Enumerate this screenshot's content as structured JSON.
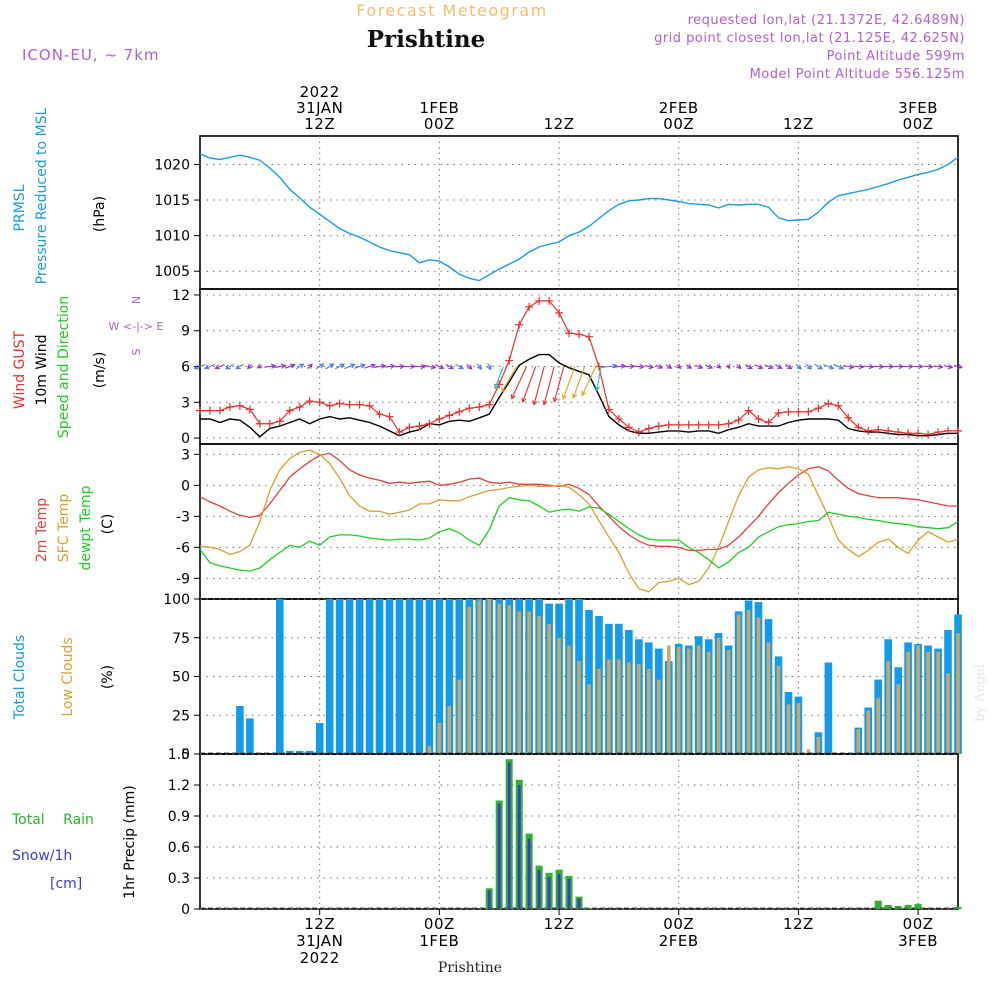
{
  "header": {
    "subtitle": "Forecast Meteogram",
    "title": "Prishtine",
    "model": "ICON-EU, ~ 7km",
    "requested": "requested lon,lat (21.1372E, 42.6489N)",
    "gridpoint": "grid point closest lon,lat (21.125E, 42.625N)",
    "altitude": "Point Altitude 599m",
    "model_altitude": "Model Point Altitude 556.125m",
    "watermark": "by Angel",
    "footer_location": "Prishtine"
  },
  "colors": {
    "pressure": "#1a9be0",
    "gust": "#e8312c",
    "wind": "#000000",
    "temp2m": "#e04040",
    "sfc": "#d9a030",
    "dewpt": "#22cc22",
    "total_clouds": "#139ae8",
    "low_clouds": "#c8a86a",
    "rain": "#2bb52b",
    "snow": "#3b3bd0",
    "purple": "#b060d0",
    "grid": "#777777"
  },
  "chart_data": {
    "type": "meteogram",
    "time_axis": {
      "unit": "hour",
      "range": [
        0,
        76
      ],
      "top_date_lines": [
        {
          "hour": 12,
          "lines": [
            "2022",
            "31JAN",
            "12Z"
          ]
        },
        {
          "hour": 24,
          "lines": [
            "1FEB",
            "00Z"
          ]
        },
        {
          "hour": 36,
          "lines": [
            "12Z"
          ]
        },
        {
          "hour": 48,
          "lines": [
            "2FEB",
            "00Z"
          ]
        },
        {
          "hour": 60,
          "lines": [
            "12Z"
          ]
        },
        {
          "hour": 72,
          "lines": [
            "3FEB",
            "00Z"
          ]
        }
      ],
      "bottom_date_lines": [
        {
          "hour": 12,
          "lines": [
            "12Z",
            "31JAN",
            "2022"
          ]
        },
        {
          "hour": 24,
          "lines": [
            "00Z",
            "1FEB"
          ]
        },
        {
          "hour": 36,
          "lines": [
            "12Z"
          ]
        },
        {
          "hour": 48,
          "lines": [
            "00Z",
            "2FEB"
          ]
        },
        {
          "hour": 60,
          "lines": [
            "12Z"
          ]
        },
        {
          "hour": 72,
          "lines": [
            "00Z",
            "3FEB"
          ]
        }
      ]
    },
    "pressure": {
      "labels": [
        "PRMSL",
        "Pressure Reduced to MSL",
        "(hPa)"
      ],
      "ylim": [
        1002.5,
        1024
      ],
      "yticks": [
        1005,
        1010,
        1015,
        1020
      ],
      "x": [
        0,
        1,
        2,
        3,
        4,
        5,
        6,
        7,
        8,
        9,
        10,
        11,
        12,
        13,
        14,
        15,
        16,
        17,
        18,
        19,
        20,
        21,
        22,
        23,
        24,
        25,
        26,
        27,
        28,
        29,
        30,
        31,
        32,
        33,
        34,
        35,
        36,
        37,
        38,
        39,
        40,
        41,
        42,
        43,
        44,
        45,
        46,
        47,
        48,
        49,
        50,
        51,
        52,
        53,
        54,
        55,
        56,
        57,
        58,
        59,
        60,
        61,
        62,
        63,
        64,
        65,
        66,
        67,
        68,
        69,
        70,
        71,
        72,
        73,
        74,
        75,
        76
      ],
      "values": [
        1021.5,
        1020.9,
        1020.7,
        1021,
        1021.3,
        1021,
        1020.6,
        1019.5,
        1018.2,
        1016.5,
        1015.3,
        1014,
        1013,
        1012,
        1011,
        1010.3,
        1009.8,
        1009.1,
        1008.4,
        1007.9,
        1007.6,
        1007.3,
        1006.2,
        1006.6,
        1006.4,
        1005.6,
        1004.6,
        1004,
        1003.7,
        1004.5,
        1005.3,
        1006,
        1006.7,
        1007.7,
        1008.4,
        1008.8,
        1009.1,
        1010,
        1010.5,
        1011.3,
        1012.4,
        1013.5,
        1014.4,
        1014.9,
        1015,
        1015.2,
        1015.2,
        1015,
        1014.8,
        1014.5,
        1014.4,
        1014.3,
        1013.9,
        1014.4,
        1014.3,
        1014.4,
        1014.4,
        1014,
        1012.5,
        1012.1,
        1012.2,
        1012.3,
        1013.3,
        1014.7,
        1015.6,
        1015.9,
        1016.2,
        1016.5,
        1016.9,
        1017.3,
        1017.8,
        1018.2,
        1018.6,
        1018.9,
        1019.3,
        1020,
        1021
      ]
    },
    "wind": {
      "labels": [
        "Wind GUST",
        "10m Wind",
        "Speed and Direction",
        "(m/s)"
      ],
      "compass": [
        "N",
        "W <-|-> E",
        "S"
      ],
      "ylim": [
        -0.5,
        12.5
      ],
      "yticks": [
        0,
        3,
        6,
        9,
        12
      ],
      "x": [
        0,
        1,
        2,
        3,
        4,
        5,
        6,
        7,
        8,
        9,
        10,
        11,
        12,
        13,
        14,
        15,
        16,
        17,
        18,
        19,
        20,
        21,
        22,
        23,
        24,
        25,
        26,
        27,
        28,
        29,
        30,
        31,
        32,
        33,
        34,
        35,
        36,
        37,
        38,
        39,
        40,
        41,
        42,
        43,
        44,
        45,
        46,
        47,
        48,
        49,
        50,
        51,
        52,
        53,
        54,
        55,
        56,
        57,
        58,
        59,
        60,
        61,
        62,
        63,
        64,
        65,
        66,
        67,
        68,
        69,
        70,
        71,
        72,
        73,
        74,
        75,
        76
      ],
      "gust": [
        2.3,
        2.3,
        2.3,
        2.6,
        2.7,
        2.4,
        1.2,
        1.2,
        1.4,
        2.3,
        2.6,
        3.1,
        3,
        2.7,
        2.9,
        2.8,
        2.8,
        2.7,
        2,
        1.8,
        0.5,
        0.9,
        1,
        1.2,
        1.6,
        1.9,
        2.2,
        2.5,
        2.6,
        2.8,
        4.5,
        6.5,
        9.5,
        11,
        11.5,
        11.5,
        10.5,
        8.8,
        8.7,
        8.5,
        6,
        2.4,
        1.6,
        0.9,
        0.5,
        0.8,
        1,
        1.1,
        1.1,
        1.1,
        1.1,
        1.1,
        1.1,
        1.2,
        1.5,
        2.3,
        1.6,
        1.3,
        2.1,
        2.2,
        2.2,
        2.2,
        2.5,
        2.9,
        2.7,
        1.7,
        0.9,
        0.6,
        0.7,
        0.6,
        0.5,
        0.4,
        0.4,
        0.3,
        0.5,
        0.6,
        0.6
      ],
      "speed": [
        1.6,
        1.6,
        1.3,
        1.6,
        1.5,
        0.9,
        0.1,
        0.8,
        1,
        1.3,
        1.6,
        1.2,
        1.6,
        1.8,
        1.6,
        1.7,
        1.5,
        1.3,
        1,
        0.6,
        0.2,
        0.5,
        0.7,
        1.2,
        1.1,
        1.4,
        1.5,
        1.4,
        1.7,
        2,
        3.4,
        4.7,
        6.1,
        6.6,
        7,
        7,
        6.3,
        5.9,
        5.6,
        5.3,
        3.6,
        1.8,
        1.1,
        0.6,
        0.4,
        0.4,
        0.5,
        0.6,
        0.6,
        0.5,
        0.6,
        0.6,
        0.4,
        0.7,
        0.9,
        1.2,
        1,
        1,
        1,
        1.3,
        1.5,
        1.6,
        1.6,
        1.6,
        1.5,
        0.8,
        0.6,
        0.5,
        0.5,
        0.4,
        0.3,
        0.3,
        0.2,
        0.2,
        0.3,
        0.4,
        0.4
      ],
      "direction_deg": [
        45,
        40,
        40,
        30,
        30,
        20,
        30,
        250,
        240,
        225,
        210,
        200,
        210,
        210,
        215,
        220,
        225,
        230,
        245,
        250,
        260,
        270,
        280,
        300,
        320,
        330,
        330,
        340,
        345,
        350,
        20,
        30,
        25,
        20,
        15,
        15,
        15,
        20,
        20,
        25,
        10,
        250,
        250,
        260,
        280,
        300,
        320,
        330,
        340,
        330,
        320,
        320,
        340,
        350,
        340,
        330,
        320,
        320,
        330,
        335,
        340,
        340,
        330,
        320,
        320,
        300,
        290,
        285,
        280,
        275,
        270,
        270,
        275,
        280,
        290,
        300,
        310
      ]
    },
    "temperature": {
      "labels": [
        "2m Temp",
        "SFC Temp",
        "dewpt Temp",
        "(C)"
      ],
      "ylim": [
        -11,
        4
      ],
      "yticks": [
        -9,
        -6,
        -3,
        0,
        3
      ],
      "x": [
        0,
        1,
        2,
        3,
        4,
        5,
        6,
        7,
        8,
        9,
        10,
        11,
        12,
        13,
        14,
        15,
        16,
        17,
        18,
        19,
        20,
        21,
        22,
        23,
        24,
        25,
        26,
        27,
        28,
        29,
        30,
        31,
        32,
        33,
        34,
        35,
        36,
        37,
        38,
        39,
        40,
        41,
        42,
        43,
        44,
        45,
        46,
        47,
        48,
        49,
        50,
        51,
        52,
        53,
        54,
        55,
        56,
        57,
        58,
        59,
        60,
        61,
        62,
        63,
        64,
        65,
        66,
        67,
        68,
        69,
        70,
        71,
        72,
        73,
        74,
        75,
        76
      ],
      "temp2m": [
        -1.1,
        -1.6,
        -2,
        -2.5,
        -2.9,
        -3.1,
        -2.9,
        -1.8,
        -0.5,
        0.8,
        1.6,
        2.3,
        2.9,
        3.1,
        2.4,
        1.5,
        1,
        0.7,
        0.5,
        0.2,
        0.3,
        0.2,
        0.3,
        0.4,
        0,
        0.1,
        0.3,
        0.6,
        0.7,
        0.3,
        0.2,
        0.3,
        0.1,
        0.1,
        0.1,
        0,
        -0.1,
        0.1,
        -0.3,
        -0.9,
        -2,
        -3,
        -4,
        -4.8,
        -5.4,
        -5.8,
        -5.9,
        -5.9,
        -6,
        -6.3,
        -6.3,
        -6.2,
        -6.2,
        -5.8,
        -5,
        -4,
        -3,
        -1.8,
        -0.7,
        0.2,
        1,
        1.6,
        1.8,
        1.4,
        0.5,
        -0.3,
        -0.8,
        -1,
        -1.2,
        -1.2,
        -1.2,
        -1.3,
        -1.4,
        -1.6,
        -1.8,
        -2,
        -2
      ],
      "sfc": [
        -5.9,
        -6,
        -6.2,
        -6.7,
        -6.4,
        -5.8,
        -3.5,
        -0.5,
        1.5,
        2.6,
        3.2,
        3.4,
        3,
        2.1,
        0.7,
        -1,
        -2,
        -2.5,
        -2.5,
        -2.8,
        -2.6,
        -2.4,
        -1.8,
        -1.8,
        -1.4,
        -1.5,
        -1.5,
        -1.1,
        -0.8,
        -0.5,
        -0.4,
        -0.2,
        -0.1,
        0,
        -0.1,
        -0.1,
        0,
        -0.2,
        -0.9,
        -1.8,
        -3.4,
        -5,
        -6.5,
        -8.5,
        -10,
        -10.3,
        -9.4,
        -9.3,
        -9,
        -9.6,
        -9.3,
        -8,
        -6,
        -3.5,
        -1,
        0.8,
        1.5,
        1.7,
        1.6,
        1.8,
        1.6,
        1.1,
        -1,
        -3,
        -5.3,
        -6.2,
        -6.9,
        -6.3,
        -5.5,
        -5.2,
        -6,
        -6.6,
        -5.3,
        -4.5,
        -5,
        -5.5,
        -5.2
      ],
      "dewpt": [
        -6.2,
        -7.5,
        -7.8,
        -8,
        -8.2,
        -8.3,
        -8,
        -7.2,
        -6.5,
        -5.8,
        -6,
        -5.4,
        -5.8,
        -5,
        -4.8,
        -4.8,
        -4.9,
        -5.1,
        -5.2,
        -5.3,
        -5.2,
        -5.2,
        -5.3,
        -5.1,
        -4.5,
        -4.2,
        -4.6,
        -5.3,
        -5.8,
        -4.3,
        -2,
        -1.2,
        -1.4,
        -1.5,
        -2,
        -2.6,
        -2.4,
        -2.3,
        -2.5,
        -2.1,
        -2.2,
        -2.8,
        -3.5,
        -4.2,
        -4.8,
        -5.2,
        -5.3,
        -5.3,
        -5.3,
        -6,
        -6.5,
        -7.2,
        -8,
        -7.4,
        -6.5,
        -6,
        -5,
        -4.5,
        -4,
        -3.8,
        -3.7,
        -3.5,
        -3.4,
        -2.6,
        -2.8,
        -3,
        -3.1,
        -3.3,
        -3.4,
        -3.6,
        -3.7,
        -3.8,
        -4,
        -4.1,
        -4.2,
        -4.1,
        -3.5
      ]
    },
    "clouds": {
      "labels": [
        "Total Clouds",
        "Low Clouds",
        "(%)"
      ],
      "ylim": [
        0,
        100
      ],
      "yticks": [
        0,
        25,
        50,
        75,
        100
      ],
      "x": [
        0,
        1,
        2,
        3,
        4,
        5,
        6,
        7,
        8,
        9,
        10,
        11,
        12,
        13,
        14,
        15,
        16,
        17,
        18,
        19,
        20,
        21,
        22,
        23,
        24,
        25,
        26,
        27,
        28,
        29,
        30,
        31,
        32,
        33,
        34,
        35,
        36,
        37,
        38,
        39,
        40,
        41,
        42,
        43,
        44,
        45,
        46,
        47,
        48,
        49,
        50,
        51,
        52,
        53,
        54,
        55,
        56,
        57,
        58,
        59,
        60,
        61,
        62,
        63,
        64,
        65,
        66,
        67,
        68,
        69,
        70,
        71,
        72,
        73,
        74,
        75,
        76
      ],
      "total": [
        0,
        0,
        0,
        0,
        31,
        23,
        0,
        0,
        100,
        2,
        2,
        2,
        20,
        100,
        100,
        100,
        100,
        100,
        100,
        100,
        100,
        100,
        100,
        100,
        100,
        100,
        100,
        100,
        100,
        100,
        100,
        100,
        100,
        100,
        100,
        97,
        97,
        100,
        100,
        93,
        89,
        84,
        84,
        80,
        74,
        72,
        68,
        60,
        71,
        70,
        76,
        74,
        78,
        70,
        92,
        99,
        98,
        87,
        63,
        40,
        37,
        0,
        14,
        59,
        0,
        0,
        17,
        30,
        48,
        74,
        56,
        72,
        71,
        70,
        68,
        80,
        90
      ],
      "low": [
        0,
        0,
        0,
        0,
        0,
        0,
        0,
        0,
        0,
        0,
        0,
        0,
        0,
        0,
        0,
        0,
        0,
        0,
        0,
        0,
        0,
        0,
        0,
        5,
        20,
        31,
        48,
        95,
        99,
        100,
        97,
        96,
        92,
        92,
        89,
        84,
        75,
        70,
        60,
        45,
        55,
        61,
        61,
        59,
        58,
        55,
        48,
        70,
        69,
        68,
        70,
        66,
        75,
        67,
        90,
        93,
        88,
        72,
        57,
        32,
        33,
        3,
        11,
        0,
        0,
        0,
        16,
        28,
        36,
        60,
        45,
        66,
        70,
        66,
        66,
        52,
        78
      ]
    },
    "precip": {
      "labels": [
        "1hr Precip (mm)",
        "Total Rain",
        "Snow/1h",
        "[cm]"
      ],
      "ylim": [
        0,
        1.5
      ],
      "yticks": [
        0,
        0.3,
        0.6,
        0.9,
        1.2,
        1.5
      ],
      "x": [
        0,
        1,
        2,
        3,
        4,
        5,
        6,
        7,
        8,
        9,
        10,
        11,
        12,
        13,
        14,
        15,
        16,
        17,
        18,
        19,
        20,
        21,
        22,
        23,
        24,
        25,
        26,
        27,
        28,
        29,
        30,
        31,
        32,
        33,
        34,
        35,
        36,
        37,
        38,
        39,
        40,
        41,
        42,
        43,
        44,
        45,
        46,
        47,
        48,
        49,
        50,
        51,
        52,
        53,
        54,
        55,
        56,
        57,
        58,
        59,
        60,
        61,
        62,
        63,
        64,
        65,
        66,
        67,
        68,
        69,
        70,
        71,
        72,
        73,
        74,
        75,
        76
      ],
      "rain": [
        0,
        0,
        0,
        0,
        0,
        0,
        0,
        0,
        0,
        0,
        0,
        0,
        0,
        0,
        0,
        0,
        0,
        0,
        0,
        0,
        0,
        0,
        0,
        0,
        0,
        0,
        0,
        0,
        0,
        0.2,
        1.05,
        1.45,
        1.25,
        0.73,
        0.42,
        0.35,
        0.38,
        0.32,
        0.12,
        0.01,
        0,
        0,
        0,
        0,
        0,
        0,
        0,
        0,
        0,
        0,
        0,
        0,
        0,
        0,
        0,
        0,
        0,
        0,
        0,
        0,
        0,
        0,
        0,
        0,
        0,
        0,
        0,
        0,
        0.08,
        0.04,
        0.03,
        0.04,
        0.05,
        0,
        0,
        0,
        0.02
      ],
      "snow": [
        0,
        0,
        0,
        0,
        0,
        0,
        0,
        0,
        0,
        0,
        0,
        0,
        0,
        0,
        0,
        0,
        0,
        0,
        0,
        0,
        0,
        0,
        0,
        0,
        0,
        0,
        0,
        0,
        0,
        0.18,
        1.02,
        1.42,
        1.2,
        0.68,
        0.38,
        0.31,
        0.34,
        0.29,
        0.1,
        0,
        0,
        0,
        0,
        0,
        0,
        0,
        0,
        0,
        0,
        0,
        0,
        0,
        0,
        0,
        0,
        0,
        0,
        0,
        0,
        0,
        0,
        0,
        0,
        0,
        0,
        0,
        0,
        0,
        0,
        0,
        0,
        0,
        0,
        0,
        0,
        0,
        0
      ]
    }
  }
}
